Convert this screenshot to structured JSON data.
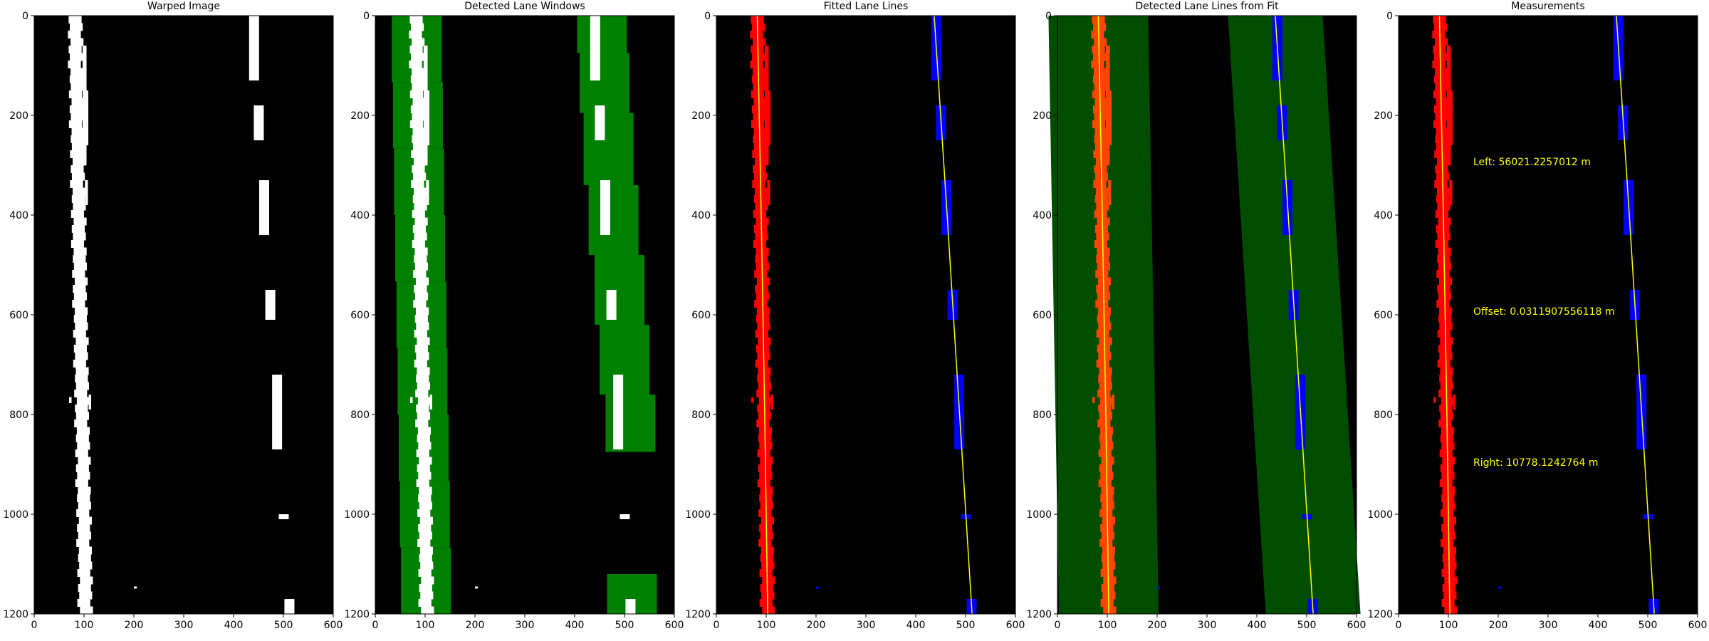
{
  "figure": {
    "panels": [
      {
        "id": "warped",
        "title": "Warped Image"
      },
      {
        "id": "windows",
        "title": "Detected Lane Windows"
      },
      {
        "id": "fitted",
        "title": "Fitted Lane Lines"
      },
      {
        "id": "fromfit",
        "title": "Detected Lane Lines from Fit"
      },
      {
        "id": "measurements",
        "title": "Measurements"
      }
    ],
    "measurements": {
      "left": "Left: 56021.2257012 m",
      "offset": "Offset: 0.0311907556118 m",
      "right": "Right: 10778.1242764 m"
    },
    "colors": {
      "background": "#000000",
      "lane_pixels_binary": "#ffffff",
      "window_fill": "#008000",
      "left_lane_pixels": "#ff0000",
      "right_lane_pixels": "#0000ff",
      "fit_line": "#ffff00",
      "search_band": "#004d00",
      "left_lane_in_band": "#ff4500",
      "measurement_text": "#ffff00"
    }
  },
  "chart_data": [
    {
      "type": "image",
      "title": "Warped Image",
      "xlim": [
        0,
        600
      ],
      "ylim": [
        1200,
        0
      ],
      "xticks": [
        0,
        100,
        200,
        300,
        400,
        500,
        600
      ],
      "yticks": [
        0,
        200,
        400,
        600,
        800,
        1000,
        1200
      ],
      "xlabel": "",
      "ylabel": ""
    },
    {
      "type": "image",
      "title": "Detected Lane Windows",
      "xlim": [
        0,
        600
      ],
      "ylim": [
        1200,
        0
      ],
      "xticks": [
        0,
        100,
        200,
        300,
        400,
        500,
        600
      ],
      "yticks": [
        0,
        200,
        400,
        600,
        800,
        1000,
        1200
      ],
      "xlabel": "",
      "ylabel": ""
    },
    {
      "type": "image",
      "title": "Fitted Lane Lines",
      "xlim": [
        0,
        600
      ],
      "ylim": [
        1200,
        0
      ],
      "xticks": [
        0,
        100,
        200,
        300,
        400,
        500,
        600
      ],
      "yticks": [
        0,
        200,
        400,
        600,
        800,
        1000,
        1200
      ],
      "xlabel": "",
      "ylabel": "",
      "series": [
        {
          "name": "",
          "x": [
            82,
            90,
            97,
            103
          ],
          "y": [
            0,
            400,
            800,
            1200
          ]
        },
        {
          "name": "",
          "x": [
            437,
            463,
            488,
            513
          ],
          "y": [
            0,
            400,
            800,
            1200
          ]
        }
      ]
    },
    {
      "type": "image",
      "title": "Detected Lane Lines from Fit",
      "xlim": [
        0,
        600
      ],
      "ylim": [
        1200,
        0
      ],
      "xticks": [
        0,
        100,
        200,
        300,
        400,
        500,
        600
      ],
      "yticks": [
        0,
        200,
        400,
        600,
        800,
        1000,
        1200
      ],
      "xlabel": "",
      "ylabel": "",
      "series": [
        {
          "name": "",
          "x": [
            82,
            90,
            97,
            103
          ],
          "y": [
            0,
            400,
            800,
            1200
          ]
        },
        {
          "name": "",
          "x": [
            437,
            463,
            488,
            513
          ],
          "y": [
            0,
            400,
            800,
            1200
          ]
        }
      ]
    },
    {
      "type": "image",
      "title": "Measurements",
      "xlim": [
        0,
        600
      ],
      "ylim": [
        1200,
        0
      ],
      "xticks": [
        0,
        100,
        200,
        300,
        400,
        500,
        600
      ],
      "yticks": [
        0,
        200,
        400,
        600,
        800,
        1000,
        1200
      ],
      "xlabel": "",
      "ylabel": "",
      "series": [
        {
          "name": "",
          "x": [
            82,
            90,
            97,
            103
          ],
          "y": [
            0,
            400,
            800,
            1200
          ]
        },
        {
          "name": "",
          "x": [
            437,
            463,
            488,
            513
          ],
          "y": [
            0,
            400,
            800,
            1200
          ]
        }
      ],
      "annotations": [
        {
          "text": "Left: 56021.2257012 m",
          "x": 150,
          "y": 290
        },
        {
          "text": "Offset: 0.0311907556118 m",
          "x": 150,
          "y": 590
        },
        {
          "text": "Right: 10778.1242764 m",
          "x": 150,
          "y": 893
        }
      ]
    }
  ]
}
